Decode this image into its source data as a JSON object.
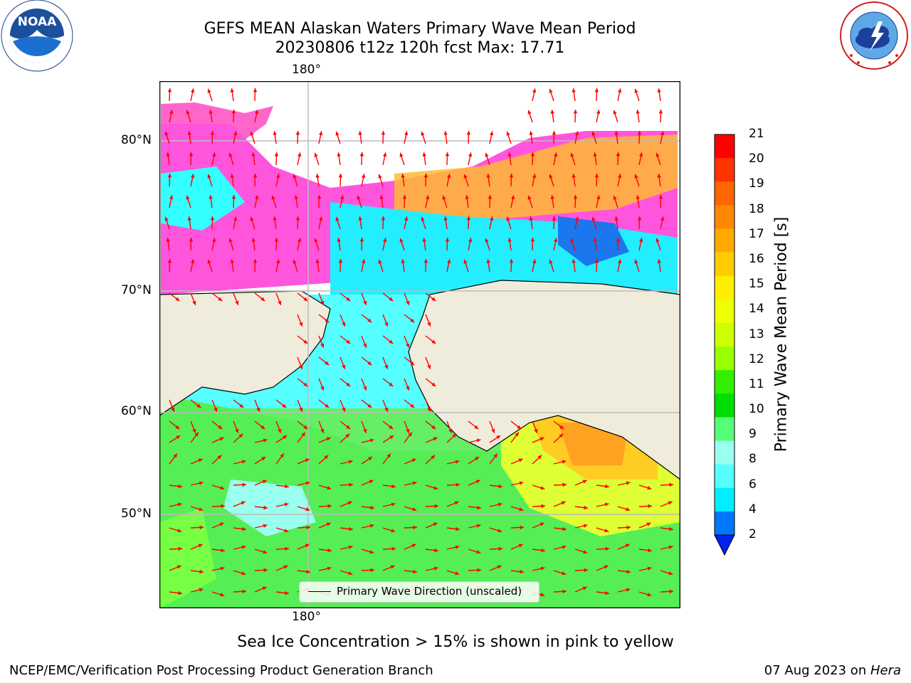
{
  "header": {
    "title_line1": "GEFS MEAN Alaskan Waters Primary Wave Mean Period",
    "title_line2": "20230806 t12z 120h fcst   Max: 17.71"
  },
  "logos": {
    "noaa_text": "NOAA",
    "noaa_ring_text": "NATIONAL OCEANIC AND ATMOSPHERIC ADMINISTRATION · U.S. DEPARTMENT OF COMMERCE",
    "nws_ring_text": "NATIONAL WEATHER SERVICE"
  },
  "map": {
    "top_lon_label": "180°",
    "bottom_lon_label": "180°",
    "lat_labels": [
      "80°N",
      "70°N",
      "60°N",
      "50°N"
    ],
    "legend_label": "Primary Wave Direction (unscaled)",
    "arrow_color": "#ff0000",
    "land_color": "#efecdc"
  },
  "colorbar": {
    "label": "Primary Wave Mean Period [s]",
    "ticks": [
      "21",
      "20",
      "19",
      "18",
      "17",
      "16",
      "15",
      "14",
      "13",
      "12",
      "11",
      "10",
      "9",
      "8",
      "6",
      "4",
      "2"
    ],
    "colors": [
      "#ff0000",
      "#ff3300",
      "#ff6600",
      "#ff8800",
      "#ffaa00",
      "#ffcc00",
      "#ffee00",
      "#eeff00",
      "#ccff00",
      "#99ff00",
      "#33ee00",
      "#00dd00",
      "#55ff77",
      "#99ffee",
      "#55ffff",
      "#00eeff",
      "#0077ff"
    ],
    "extend_color": "#0022ee"
  },
  "note": "Sea Ice Concentration > 15% is shown in pink to yellow",
  "footer": {
    "left": "NCEP/EMC/Verification Post Processing Product Generation Branch",
    "right_prefix": "07 Aug 2023 on ",
    "right_machine": "Hera"
  }
}
